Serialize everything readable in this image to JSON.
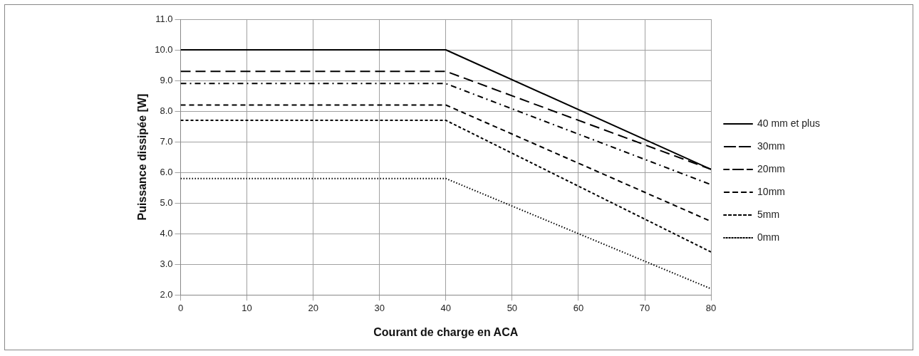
{
  "chart_data": {
    "type": "line",
    "xlabel": "Courant de charge en ACA",
    "ylabel": "Puissance dissipée [W]",
    "x": [
      0,
      40,
      80
    ],
    "series": [
      {
        "name": "40 mm et plus",
        "color": "#000000",
        "line_style": "solid",
        "values": [
          10.0,
          10.0,
          6.1
        ]
      },
      {
        "name": "30mm",
        "color": "#000000",
        "line_style": "longdash",
        "values": [
          9.3,
          9.3,
          6.1
        ]
      },
      {
        "name": "20mm",
        "color": "#000000",
        "line_style": "dashdot",
        "values": [
          8.9,
          8.9,
          5.6
        ]
      },
      {
        "name": "10mm",
        "color": "#000000",
        "line_style": "dashed",
        "values": [
          8.2,
          8.2,
          4.4
        ]
      },
      {
        "name": "5mm",
        "color": "#000000",
        "line_style": "shortdash",
        "values": [
          7.7,
          7.7,
          3.4
        ]
      },
      {
        "name": "0mm",
        "color": "#000000",
        "line_style": "dotted",
        "values": [
          5.8,
          5.8,
          2.2
        ]
      }
    ],
    "xlim": [
      0,
      80
    ],
    "xticks": [
      0,
      10,
      20,
      30,
      40,
      50,
      60,
      70,
      80
    ],
    "ylim": [
      2.0,
      11.0
    ],
    "yticks": [
      {
        "value": 2,
        "label": "2.0"
      },
      {
        "value": 3,
        "label": "3.0"
      },
      {
        "value": 4,
        "label": "4.0"
      },
      {
        "value": 5,
        "label": "5.0"
      },
      {
        "value": 6,
        "label": "6.0"
      },
      {
        "value": 7,
        "label": "7.0"
      },
      {
        "value": 8,
        "label": "8.0"
      },
      {
        "value": 9,
        "label": "9.0"
      },
      {
        "value": 10,
        "label": "10.0"
      },
      {
        "value": 11,
        "label": "11.0"
      }
    ],
    "grid": true,
    "legend": "right",
    "marker": "none"
  }
}
